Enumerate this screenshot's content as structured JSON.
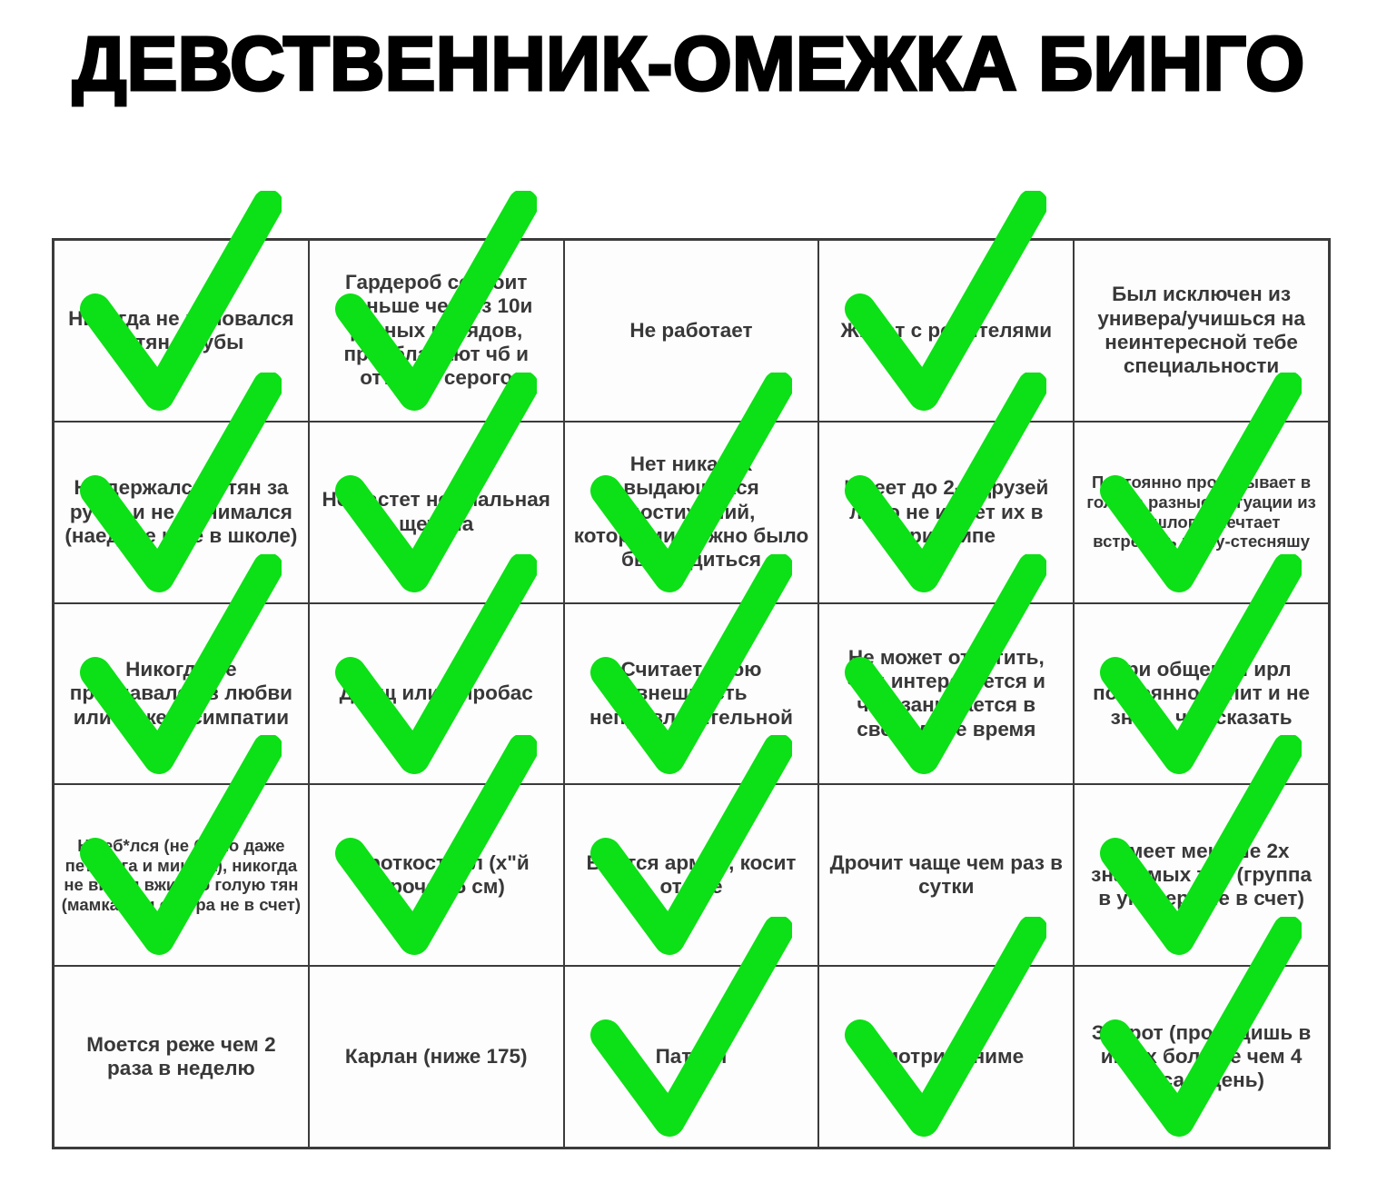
{
  "title": "ДЕВСТВЕННИК-ОМЕЖКА БИНГО",
  "checkmark_color": "#0be216",
  "checkmark_color_hex": "#0ce016",
  "grid": {
    "rows": 5,
    "cols": 5,
    "cells": [
      {
        "text": "Никогда не целовался с тян в губы",
        "checked": true,
        "small": false
      },
      {
        "text": "Гардероб состоит меньше чем из 10и разных нарядов, преобладают чб и оттенки серого",
        "checked": true,
        "small": false
      },
      {
        "text": "Не работает",
        "checked": false,
        "small": false
      },
      {
        "text": "Живет с родителями",
        "checked": true,
        "small": false
      },
      {
        "text": "Был исключен из универа/учишься на неинтересной тебе специальности",
        "checked": false,
        "small": false
      },
      {
        "text": "Не держался с тян за ручку и не обнимался (наедине и не в школе)",
        "checked": true,
        "small": false
      },
      {
        "text": "Не растет нормальная щетина",
        "checked": true,
        "small": false
      },
      {
        "text": "Нет никаких выдающихся достижений, которыми можно было бы гордиться",
        "checked": true,
        "small": false
      },
      {
        "text": "Имеет до 2-х друзей либо не имеет их в принципе",
        "checked": true,
        "small": false
      },
      {
        "text": "Постоянно проигрывает в голове разные ситуации из прошлого, мечтает встретить няшу-стесняшу",
        "checked": true,
        "small": true
      },
      {
        "text": "Никогда не признавался в любви или даже в симпатии",
        "checked": true,
        "small": false
      },
      {
        "text": "Дрищ или жиробас",
        "checked": true,
        "small": false
      },
      {
        "text": "Считает свою внешность непривлекательной",
        "checked": true,
        "small": false
      },
      {
        "text": "Не может ответить, чем интересуется и чем занимается в свободное время",
        "checked": true,
        "small": false
      },
      {
        "text": "При общении ирл постоянно тупит и не знает, что сказать",
        "checked": true,
        "small": false
      },
      {
        "text": "Не еб*лся (не было даже петтинга и минета), никогда не видел вживую голую тян (мамка или сестра не в счет)",
        "checked": true,
        "small": true
      },
      {
        "text": "Короткоствол (х\"й короче 15 см)",
        "checked": true,
        "small": false
      },
      {
        "text": "Боится армии, косит от нее",
        "checked": true,
        "small": false
      },
      {
        "text": "Дрочит чаще чем раз в сутки",
        "checked": false,
        "small": false
      },
      {
        "text": "Имеет меньше 2х знакомых тян (группа в универе не в счет)",
        "checked": true,
        "small": false
      },
      {
        "text": "Моется реже чем 2 раза в неделю",
        "checked": false,
        "small": false
      },
      {
        "text": "Карлан (ниже 175)",
        "checked": false,
        "small": false
      },
      {
        "text": "Патлач",
        "checked": true,
        "small": false
      },
      {
        "text": "Смотрит аниме",
        "checked": true,
        "small": false
      },
      {
        "text": "Задрот (проводишь в играх больше чем 4 часа в день)",
        "checked": true,
        "small": false
      }
    ]
  }
}
